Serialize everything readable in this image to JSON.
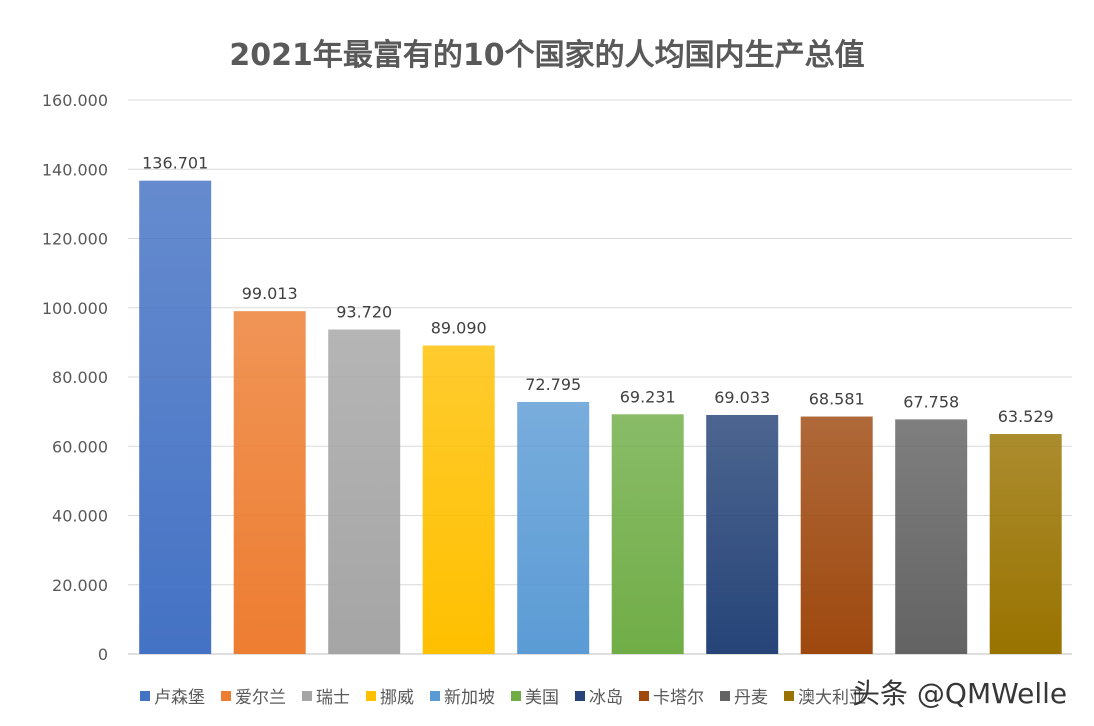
{
  "chart_data": {
    "type": "bar",
    "title": "2021年最富有的10个国家的人均国内生产总值",
    "categories": [
      "卢森堡",
      "爱尔兰",
      "瑞士",
      "挪威",
      "新加坡",
      "美国",
      "冰岛",
      "卡塔尔",
      "丹麦",
      "澳大利亚"
    ],
    "values": [
      136.701,
      99.013,
      93.72,
      89.09,
      72.795,
      69.231,
      69.033,
      68.581,
      67.758,
      63.529
    ],
    "data_labels": [
      "136.701",
      "99.013",
      "93.720",
      "89.090",
      "72.795",
      "69.231",
      "69.033",
      "68.581",
      "67.758",
      "63.529"
    ],
    "colors": [
      "#4472C4",
      "#ED7D31",
      "#A5A5A5",
      "#FFC000",
      "#5B9BD5",
      "#70AD47",
      "#264478",
      "#9E480E",
      "#636363",
      "#997300"
    ],
    "ylim": [
      0,
      160
    ],
    "yticks": [
      "0",
      "20.000",
      "40.000",
      "60.000",
      "80.000",
      "100.000",
      "120.000",
      "140.000",
      "160.000"
    ],
    "grid": true,
    "legend": "bottom"
  },
  "watermark": "头条 @QMWelle"
}
